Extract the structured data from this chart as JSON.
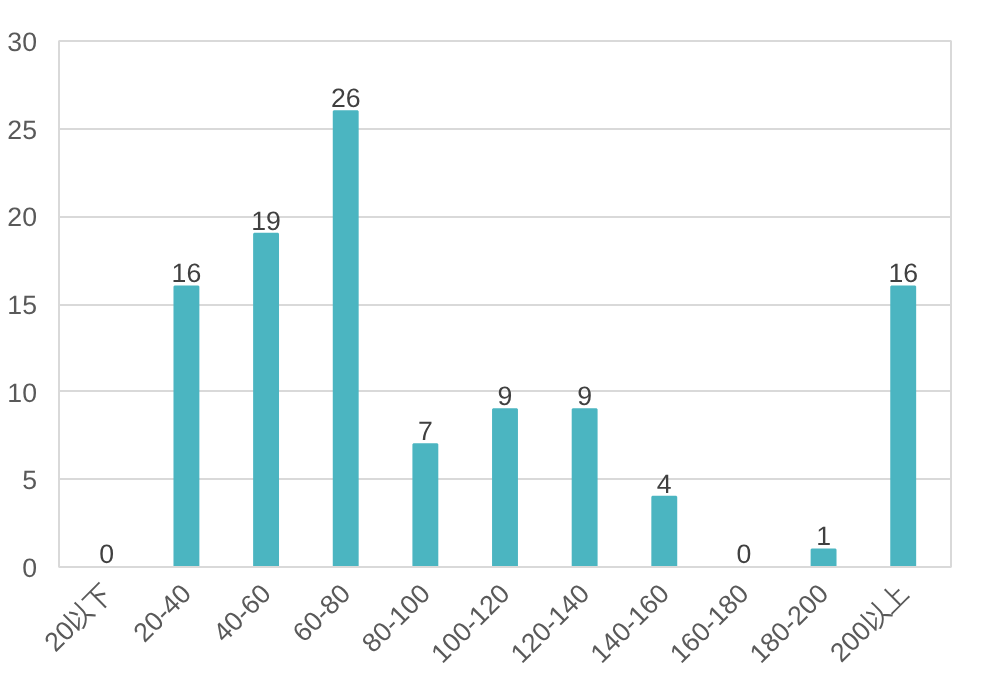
{
  "chart_data": {
    "type": "bar",
    "categories": [
      "20以下",
      "20-40",
      "40-60",
      "60-80",
      "80-100",
      "100-120",
      "120-140",
      "140-160",
      "160-180",
      "180-200",
      "200以上"
    ],
    "values": [
      0,
      16,
      19,
      26,
      7,
      9,
      9,
      4,
      0,
      1,
      16
    ],
    "color": "#4bb5c1",
    "ylim": [
      0,
      30
    ],
    "yticks": [
      0,
      5,
      10,
      15,
      20,
      25,
      30
    ],
    "grid": "y",
    "data_labels": true
  }
}
